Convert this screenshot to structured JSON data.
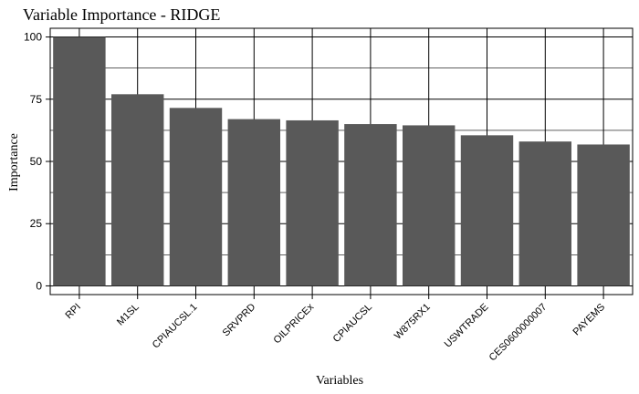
{
  "chart_data": {
    "type": "bar",
    "title": "Variable Importance - RIDGE",
    "xlabel": "Variables",
    "ylabel": "Importance",
    "categories": [
      "RPI",
      "M1SL",
      "CPIAUCSL.1",
      "SRVPRD",
      "OILPRICEx",
      "CPIAUCSL",
      "W875RX1",
      "USWTRADE",
      "CES0600000007",
      "PAYEMS"
    ],
    "values": [
      100,
      77,
      71.5,
      67,
      66.5,
      65,
      64.5,
      60.5,
      58,
      56.8
    ],
    "ylim": [
      -3.5,
      103.5
    ],
    "yticks": [
      0,
      25,
      50,
      75,
      100
    ],
    "grid": true,
    "colors": {
      "bar": "#595959",
      "grid": "#000000",
      "background": "#ffffff"
    }
  }
}
